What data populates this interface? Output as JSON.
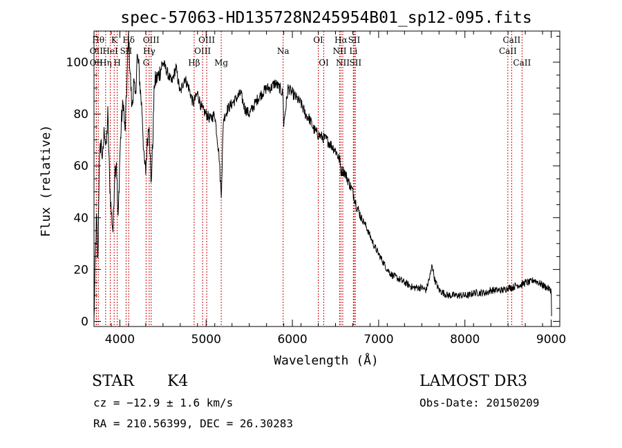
{
  "chart_data": {
    "type": "line",
    "title": "spec-57063-HD135728N245954B01_sp12-095.fits",
    "xlabel": "Wavelength (Å)",
    "ylabel": "Flux (relative)",
    "xlim": [
      3700,
      9100
    ],
    "ylim": [
      -2,
      112
    ],
    "xticks": [
      4000,
      5000,
      6000,
      7000,
      8000,
      9000
    ],
    "yticks": [
      0,
      20,
      40,
      60,
      80,
      100
    ],
    "series": [
      {
        "name": "spectrum",
        "x": [
          3700,
          3715,
          3730,
          3745,
          3760,
          3780,
          3800,
          3820,
          3840,
          3860,
          3880,
          3900,
          3920,
          3940,
          3960,
          3980,
          4000,
          4020,
          4040,
          4060,
          4080,
          4100,
          4120,
          4140,
          4160,
          4180,
          4200,
          4220,
          4240,
          4260,
          4280,
          4300,
          4320,
          4340,
          4360,
          4380,
          4400,
          4450,
          4500,
          4550,
          4600,
          4650,
          4700,
          4750,
          4800,
          4850,
          4900,
          4950,
          5000,
          5050,
          5100,
          5150,
          5175,
          5185,
          5200,
          5250,
          5300,
          5350,
          5400,
          5450,
          5500,
          5550,
          5600,
          5650,
          5700,
          5750,
          5800,
          5850,
          5890,
          5900,
          5950,
          6000,
          6050,
          6100,
          6150,
          6200,
          6250,
          6300,
          6350,
          6400,
          6450,
          6500,
          6550,
          6563,
          6600,
          6650,
          6700,
          6750,
          6800,
          6850,
          6900,
          6950,
          7000,
          7050,
          7100,
          7150,
          7200,
          7250,
          7300,
          7350,
          7400,
          7450,
          7500,
          7550,
          7600,
          7620,
          7650,
          7700,
          7750,
          7800,
          7850,
          7900,
          7950,
          8000,
          8050,
          8100,
          8150,
          8200,
          8250,
          8300,
          8350,
          8400,
          8450,
          8500,
          8550,
          8600,
          8650,
          8700,
          8750,
          8800,
          8850,
          8900,
          8950,
          9000,
          9005
        ],
        "y": [
          0,
          25,
          40,
          22,
          60,
          70,
          62,
          75,
          66,
          80,
          55,
          42,
          35,
          58,
          62,
          38,
          64,
          78,
          85,
          72,
          90,
          110,
          96,
          82,
          92,
          86,
          102,
          98,
          88,
          80,
          62,
          58,
          70,
          78,
          52,
          68,
          92,
          95,
          100,
          96,
          92,
          98,
          88,
          94,
          90,
          84,
          88,
          82,
          80,
          78,
          80,
          64,
          48,
          60,
          78,
          82,
          84,
          86,
          88,
          82,
          80,
          83,
          86,
          88,
          90,
          90,
          92,
          90,
          88,
          76,
          90,
          88,
          86,
          84,
          80,
          78,
          74,
          72,
          71,
          70,
          68,
          66,
          62,
          58,
          58,
          54,
          50,
          44,
          40,
          37,
          33,
          29,
          26,
          23,
          20,
          18,
          17,
          16,
          15,
          14,
          13,
          13,
          13,
          12,
          18,
          22,
          16,
          12,
          11,
          10,
          10,
          10,
          10,
          10,
          10,
          11,
          11,
          11,
          11,
          12,
          12,
          12,
          12,
          13,
          13,
          14,
          14,
          15,
          15,
          16,
          15,
          14,
          13,
          12,
          2
        ]
      }
    ],
    "spectral_lines": [
      {
        "wavelength": 3727,
        "label": "OII",
        "row": 1
      },
      {
        "wavelength": 3727,
        "label": "OII",
        "row": 2
      },
      {
        "wavelength": 3750,
        "label": "Hθ",
        "row": 0
      },
      {
        "wavelength": 3835,
        "label": "Hη",
        "row": 2
      },
      {
        "wavelength": 3889,
        "label": "HeI",
        "row": 1
      },
      {
        "wavelength": 3934,
        "label": "K",
        "row": 0
      },
      {
        "wavelength": 3969,
        "label": "H",
        "row": 2
      },
      {
        "wavelength": 4072,
        "label": "SII",
        "row": 1
      },
      {
        "wavelength": 4102,
        "label": "Hδ",
        "row": 0
      },
      {
        "wavelength": 4304,
        "label": "G",
        "row": 2
      },
      {
        "wavelength": 4340,
        "label": "Hγ",
        "row": 1
      },
      {
        "wavelength": 4363,
        "label": "OIII",
        "row": 0
      },
      {
        "wavelength": 4861,
        "label": "Hβ",
        "row": 2
      },
      {
        "wavelength": 4959,
        "label": "OIII",
        "row": 1
      },
      {
        "wavelength": 5007,
        "label": "OIII",
        "row": 0
      },
      {
        "wavelength": 5175,
        "label": "Mg",
        "row": 2
      },
      {
        "wavelength": 5893,
        "label": "Na",
        "row": 1
      },
      {
        "wavelength": 6300,
        "label": "OI",
        "row": 0
      },
      {
        "wavelength": 6364,
        "label": "OI",
        "row": 2
      },
      {
        "wavelength": 6548,
        "label": "NII",
        "row": 1
      },
      {
        "wavelength": 6563,
        "label": "Hα",
        "row": 0
      },
      {
        "wavelength": 6584,
        "label": "NII",
        "row": 2
      },
      {
        "wavelength": 6707,
        "label": "Li",
        "row": 1
      },
      {
        "wavelength": 6716,
        "label": "SII",
        "row": 0
      },
      {
        "wavelength": 6731,
        "label": "SII",
        "row": 2
      },
      {
        "wavelength": 8498,
        "label": "CaII",
        "row": 1
      },
      {
        "wavelength": 8542,
        "label": "CaII",
        "row": 0
      },
      {
        "wavelength": 8662,
        "label": "CaII",
        "row": 2
      }
    ],
    "colors": {
      "spectrum": "#000000",
      "lines": "#cc0000",
      "axes": "#000000"
    }
  },
  "info": {
    "class": "STAR",
    "subclass": "K4",
    "survey": "LAMOST DR3",
    "cz": "cz = −12.9 ± 1.6 km/s",
    "obs_date": "Obs-Date: 20150209",
    "radec": "RA = 210.56399, DEC =  26.30283"
  }
}
